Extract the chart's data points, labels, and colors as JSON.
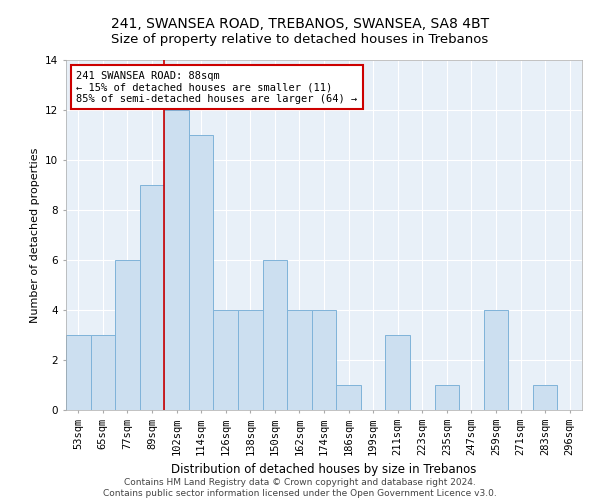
{
  "title1": "241, SWANSEA ROAD, TREBANOS, SWANSEA, SA8 4BT",
  "title2": "Size of property relative to detached houses in Trebanos",
  "xlabel": "Distribution of detached houses by size in Trebanos",
  "ylabel": "Number of detached properties",
  "categories": [
    "53sqm",
    "65sqm",
    "77sqm",
    "89sqm",
    "102sqm",
    "114sqm",
    "126sqm",
    "138sqm",
    "150sqm",
    "162sqm",
    "174sqm",
    "186sqm",
    "199sqm",
    "211sqm",
    "223sqm",
    "235sqm",
    "247sqm",
    "259sqm",
    "271sqm",
    "283sqm",
    "296sqm"
  ],
  "values": [
    3,
    3,
    6,
    9,
    12,
    11,
    4,
    4,
    6,
    4,
    4,
    1,
    0,
    3,
    0,
    1,
    0,
    4,
    0,
    1,
    0
  ],
  "bar_color": "#ccdff0",
  "bar_edge_color": "#7fb3d9",
  "property_line_x": 3.5,
  "annotation_text": "241 SWANSEA ROAD: 88sqm\n← 15% of detached houses are smaller (11)\n85% of semi-detached houses are larger (64) →",
  "annotation_box_color": "white",
  "annotation_box_edge": "#cc0000",
  "vline_color": "#cc0000",
  "ylim": [
    0,
    14
  ],
  "yticks": [
    0,
    2,
    4,
    6,
    8,
    10,
    12,
    14
  ],
  "footer": "Contains HM Land Registry data © Crown copyright and database right 2024.\nContains public sector information licensed under the Open Government Licence v3.0.",
  "background_color": "#e8f0f8",
  "grid_color": "#ffffff",
  "title1_fontsize": 10,
  "title2_fontsize": 9.5,
  "xlabel_fontsize": 8.5,
  "ylabel_fontsize": 8,
  "tick_fontsize": 7.5,
  "footer_fontsize": 6.5,
  "annot_fontsize": 7.5
}
